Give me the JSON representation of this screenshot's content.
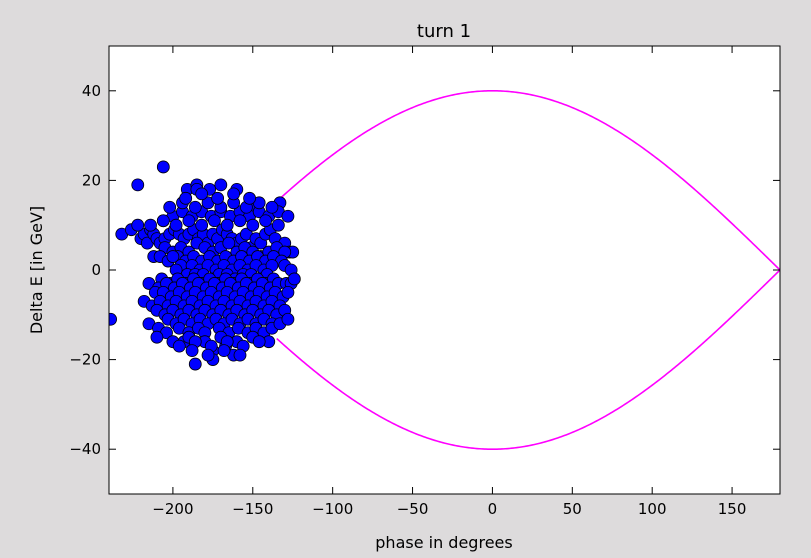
{
  "chart_data": {
    "type": "scatter",
    "title": "turn 1",
    "xlabel": "phase in degrees",
    "ylabel": "Delta E [in GeV]",
    "xlim": [
      -240,
      180
    ],
    "ylim": [
      -50,
      50
    ],
    "xticks": [
      -200,
      -150,
      -100,
      -50,
      0,
      50,
      100,
      150
    ],
    "xtick_labels": [
      "−200",
      "−150",
      "−100",
      "−50",
      "0",
      "50",
      "100",
      "150"
    ],
    "yticks": [
      40,
      20,
      0,
      -20,
      -40
    ],
    "ytick_labels": [
      "40",
      "20",
      "0",
      "−20",
      "−40"
    ],
    "grid": false,
    "series": [
      {
        "kind": "scatter",
        "color": "#0000ff",
        "edgecolor": "#000000",
        "x": [
          -239,
          -206,
          -222,
          -232,
          -226,
          -170,
          -191,
          -185,
          -185,
          -177,
          -160,
          -152,
          -133,
          -141,
          -175,
          -175,
          -162,
          -193,
          -186,
          -167,
          -220,
          -218,
          -216,
          -214,
          -212,
          -210,
          -208,
          -205,
          -202,
          -199,
          -196,
          -193,
          -190,
          -187,
          -184,
          -181,
          -178,
          -175,
          -172,
          -169,
          -166,
          -163,
          -160,
          -157,
          -154,
          -151,
          -148,
          -145,
          -142,
          -139,
          -136,
          -133,
          -130,
          -127,
          -125,
          -205,
          -200,
          -195,
          -190,
          -185,
          -180,
          -175,
          -170,
          -165,
          -160,
          -155,
          -150,
          -145,
          -140,
          -135,
          -130,
          -212,
          -208,
          -203,
          -197,
          -192,
          -187,
          -182,
          -177,
          -172,
          -167,
          -162,
          -157,
          -152,
          -147,
          -142,
          -137,
          -132,
          -200,
          -195,
          -188,
          -183,
          -178,
          -173,
          -168,
          -163,
          -158,
          -153,
          -148,
          -143,
          -138,
          -198,
          -191,
          -186,
          -181,
          -176,
          -171,
          -166,
          -161,
          -156,
          -151,
          -146,
          -141,
          -207,
          -202,
          -197,
          -192,
          -187,
          -182,
          -177,
          -172,
          -167,
          -162,
          -157,
          -152,
          -147,
          -142,
          -137,
          -215,
          -209,
          -204,
          -199,
          -194,
          -189,
          -184,
          -179,
          -174,
          -169,
          -164,
          -159,
          -154,
          -149,
          -144,
          -139,
          -134,
          -129,
          -126,
          -211,
          -206,
          -201,
          -196,
          -191,
          -186,
          -181,
          -176,
          -171,
          -166,
          -161,
          -156,
          -151,
          -146,
          -141,
          -136,
          -131,
          -128,
          -218,
          -213,
          -208,
          -203,
          -198,
          -193,
          -188,
          -183,
          -178,
          -173,
          -168,
          -163,
          -158,
          -153,
          -148,
          -143,
          -138,
          -133,
          -210,
          -205,
          -200,
          -195,
          -190,
          -185,
          -180,
          -175,
          -170,
          -165,
          -160,
          -155,
          -150,
          -145,
          -140,
          -135,
          -130,
          -203,
          -198,
          -193,
          -188,
          -183,
          -178,
          -173,
          -168,
          -163,
          -158,
          -153,
          -148,
          -143,
          -138,
          -215,
          -209,
          -204,
          -196,
          -190,
          -184,
          -180,
          -171,
          -165,
          -159,
          -153,
          -148,
          -143,
          -138,
          -133,
          -128,
          -206,
          -200,
          -194,
          -188,
          -182,
          -176,
          -170,
          -164,
          -158,
          -152,
          -146,
          -140,
          -134,
          -128,
          -222,
          -214,
          -206,
          -198,
          -190,
          -182,
          -174,
          -166,
          -158,
          -150,
          -142,
          -134,
          -202,
          -194,
          -186,
          -178,
          -170,
          -162,
          -154,
          -146,
          -138,
          -210,
          -200,
          -190,
          -180,
          -170,
          -160,
          -150,
          -140,
          -196,
          -186,
          -176,
          -166,
          -156,
          -146,
          -192,
          -182,
          -172,
          -162,
          -152,
          -188,
          -178,
          -168,
          -158,
          -130,
          -126,
          -124
        ],
        "y": [
          -11,
          23,
          19,
          8,
          9,
          19,
          18,
          19,
          18,
          18,
          18,
          14,
          15,
          -7,
          -18,
          -20,
          -19,
          -16,
          -21,
          -17,
          7,
          8,
          6,
          9,
          8,
          7,
          6,
          7,
          8,
          9,
          8,
          7,
          8,
          9,
          7,
          8,
          6,
          8,
          7,
          9,
          8,
          7,
          6,
          7,
          8,
          5,
          7,
          6,
          8,
          9,
          7,
          5,
          6,
          4,
          4,
          5,
          4,
          5,
          4,
          6,
          5,
          4,
          5,
          6,
          4,
          5,
          4,
          3,
          4,
          5,
          4,
          3,
          3,
          2,
          3,
          2,
          3,
          2,
          3,
          2,
          3,
          2,
          3,
          2,
          3,
          2,
          3,
          2,
          3,
          1,
          1,
          0,
          1,
          0,
          1,
          0,
          1,
          0,
          1,
          0,
          1,
          0,
          -1,
          -1,
          -1,
          -2,
          -1,
          -1,
          -2,
          -1,
          -1,
          -2,
          -1,
          -2,
          -3,
          -2,
          -3,
          -2,
          -3,
          -2,
          -3,
          -2,
          -3,
          -2,
          -3,
          -2,
          -3,
          -2,
          -3,
          -4,
          -3,
          -4,
          -3,
          -4,
          -3,
          -4,
          -3,
          -4,
          -3,
          -4,
          -3,
          -4,
          -3,
          -4,
          -3,
          -3,
          -3,
          -5,
          -5,
          -6,
          -5,
          -6,
          -5,
          -6,
          -5,
          -6,
          -5,
          -6,
          -5,
          -6,
          -5,
          -6,
          -5,
          -6,
          -5,
          -7,
          -8,
          -7,
          -8,
          -7,
          -8,
          -7,
          -8,
          -7,
          -8,
          -7,
          -8,
          -7,
          -8,
          -7,
          -8,
          -7,
          -8,
          -9,
          -10,
          -9,
          -10,
          -9,
          -10,
          -9,
          -10,
          -9,
          -10,
          -9,
          -10,
          -9,
          -10,
          -9,
          -10,
          -9,
          -11,
          -12,
          -11,
          -12,
          -11,
          -12,
          -11,
          -12,
          -11,
          -12,
          -11,
          -12,
          -11,
          -12,
          -12,
          -13,
          -14,
          -13,
          -14,
          -13,
          -14,
          -13,
          -14,
          -13,
          -14,
          -13,
          -14,
          -13,
          -12,
          -11,
          11,
          12,
          13,
          12,
          13,
          12,
          13,
          12,
          13,
          12,
          13,
          12,
          13,
          12,
          10,
          10,
          11,
          10,
          11,
          10,
          11,
          10,
          11,
          10,
          11,
          10,
          14,
          15,
          14,
          15,
          14,
          15,
          14,
          15,
          14,
          -15,
          -16,
          -15,
          -16,
          -15,
          -16,
          -15,
          -16,
          -17,
          -16,
          -17,
          -16,
          -17,
          -16,
          16,
          17,
          16,
          17,
          16,
          -18,
          -19,
          -18,
          -19,
          1,
          0,
          -2
        ]
      },
      {
        "kind": "line",
        "name": "separatrix",
        "color": "#ff00ff",
        "amplitude": 40,
        "phase_range": [
          -135,
          180
        ]
      }
    ]
  }
}
